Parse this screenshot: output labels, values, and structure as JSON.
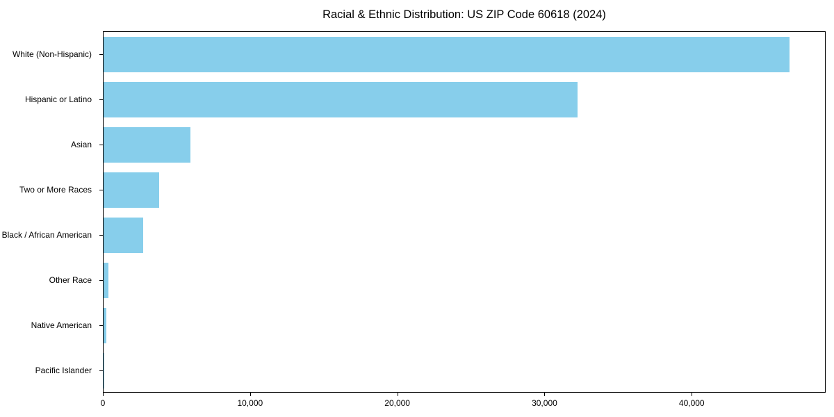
{
  "chart_data": {
    "type": "bar",
    "orientation": "horizontal",
    "title": "Racial & Ethnic Distribution: US ZIP Code 60618 (2024)",
    "categories": [
      "White (Non-Hispanic)",
      "Hispanic or Latino",
      "Asian",
      "Two or More Races",
      "Black / African American",
      "Other Race",
      "Native American",
      "Pacific Islander"
    ],
    "values": [
      46600,
      32200,
      5900,
      3800,
      2700,
      350,
      180,
      40
    ],
    "xlabel": "",
    "ylabel": "",
    "xlim": [
      0,
      49100
    ],
    "xticks": [
      {
        "value": 0,
        "label": "0"
      },
      {
        "value": 10000,
        "label": "10,000"
      },
      {
        "value": 20000,
        "label": "20,000"
      },
      {
        "value": 30000,
        "label": "30,000"
      },
      {
        "value": 40000,
        "label": "40,000"
      }
    ],
    "bar_color": "#87CEEB",
    "grid": false,
    "legend": "none"
  }
}
